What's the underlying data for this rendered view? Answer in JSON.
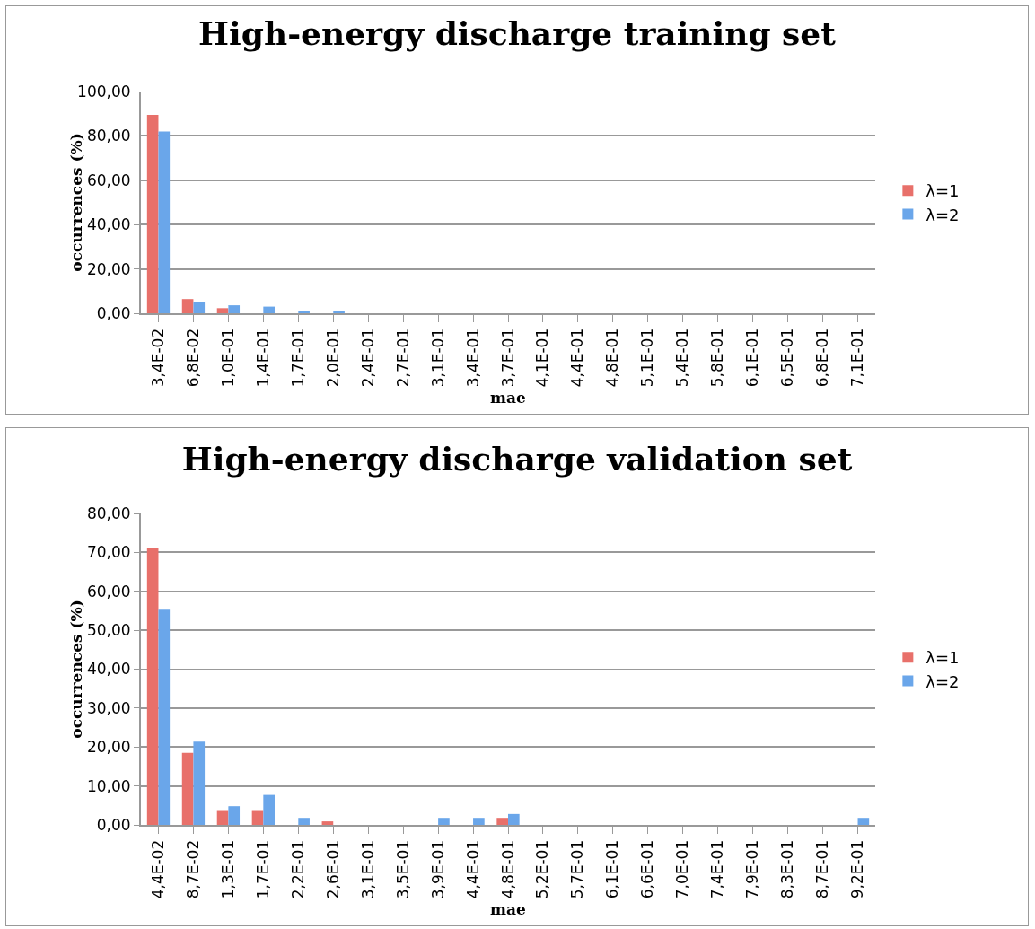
{
  "chart_data": [
    {
      "type": "bar",
      "title": "High-energy discharge training set",
      "xlabel": "mae",
      "ylabel": "occurrences (%)",
      "categories": [
        "3,4E-02",
        "6,8E-02",
        "1,0E-01",
        "1,4E-01",
        "1,7E-01",
        "2,0E-01",
        "2,4E-01",
        "2,7E-01",
        "3,1E-01",
        "3,4E-01",
        "3,7E-01",
        "4,1E-01",
        "4,4E-01",
        "4,8E-01",
        "5,1E-01",
        "5,4E-01",
        "5,8E-01",
        "6,1E-01",
        "6,5E-01",
        "6,8E-01",
        "7,1E-01"
      ],
      "series": [
        {
          "name": "λ=1",
          "color": "#e8706a",
          "values": [
            89.5,
            6.4,
            2.3,
            0,
            0,
            0,
            0,
            0,
            0,
            0,
            0,
            0,
            0,
            0,
            0,
            0,
            0,
            0,
            0,
            0,
            0
          ]
        },
        {
          "name": "λ=2",
          "color": "#6aa6ea",
          "values": [
            82,
            5,
            3.6,
            3,
            0.9,
            0.9,
            0,
            0,
            0,
            0,
            0,
            0,
            0,
            0,
            0,
            0,
            0,
            0,
            0,
            0,
            0
          ]
        }
      ],
      "ylim": [
        0,
        100
      ],
      "yticks": [
        {
          "value": 0,
          "label": "0,00"
        },
        {
          "value": 20,
          "label": "20,00"
        },
        {
          "value": 40,
          "label": "40,00"
        },
        {
          "value": 60,
          "label": "60,00"
        },
        {
          "value": 80,
          "label": "80,00"
        },
        {
          "value": 100,
          "label": "100,00"
        }
      ],
      "grid": "y",
      "legend": "right"
    },
    {
      "type": "bar",
      "title": "High-energy discharge validation set",
      "xlabel": "mae",
      "ylabel": "occurrences (%)",
      "categories": [
        "4,4E-02",
        "8,7E-02",
        "1,3E-01",
        "1,7E-01",
        "2,2E-01",
        "2,6E-01",
        "3,1E-01",
        "3,5E-01",
        "3,9E-01",
        "4,4E-01",
        "4,8E-01",
        "5,2E-01",
        "5,7E-01",
        "6,1E-01",
        "6,6E-01",
        "7,0E-01",
        "7,4E-01",
        "7,9E-01",
        "8,3E-01",
        "8,7E-01",
        "9,2E-01"
      ],
      "series": [
        {
          "name": "λ=1",
          "color": "#e8706a",
          "values": [
            71,
            18.5,
            3.8,
            3.8,
            0,
            0.9,
            0,
            0,
            0,
            0,
            1.8,
            0,
            0,
            0,
            0,
            0,
            0,
            0,
            0,
            0,
            0
          ]
        },
        {
          "name": "λ=2",
          "color": "#6aa6ea",
          "values": [
            55.3,
            21.4,
            4.8,
            7.7,
            1.8,
            0,
            0,
            0,
            1.8,
            1.8,
            2.8,
            0,
            0,
            0,
            0,
            0,
            0,
            0,
            0,
            0,
            1.8
          ]
        }
      ],
      "ylim": [
        0,
        80
      ],
      "yticks": [
        {
          "value": 0,
          "label": "0,00"
        },
        {
          "value": 10,
          "label": "10,00"
        },
        {
          "value": 20,
          "label": "20,00"
        },
        {
          "value": 30,
          "label": "30,00"
        },
        {
          "value": 40,
          "label": "40,00"
        },
        {
          "value": 50,
          "label": "50,00"
        },
        {
          "value": 60,
          "label": "60,00"
        },
        {
          "value": 70,
          "label": "70,00"
        },
        {
          "value": 80,
          "label": "80,00"
        }
      ],
      "grid": "y",
      "legend": "right"
    }
  ]
}
